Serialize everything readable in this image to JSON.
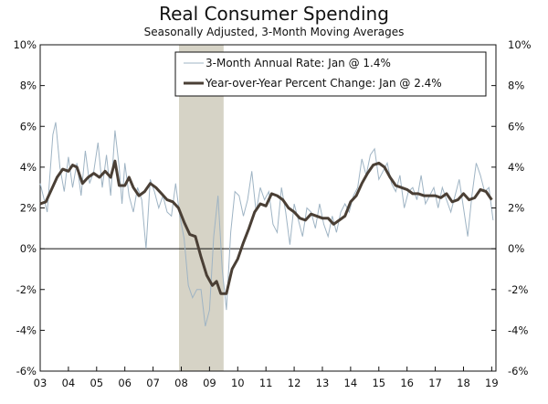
{
  "chart_data": {
    "type": "line",
    "title": "Real Consumer Spending",
    "subtitle": "Seasonally Adjusted, 3-Month Moving Averages",
    "ylim": [
      -6,
      10
    ],
    "yticks": [
      "10%",
      "8%",
      "6%",
      "4%",
      "2%",
      "0%",
      "-2%",
      "-4%",
      "-6%"
    ],
    "ytick_values": [
      10,
      8,
      6,
      4,
      2,
      0,
      -2,
      -4,
      -6
    ],
    "xlim": [
      2003.0,
      2019.15
    ],
    "xticks": [
      "03",
      "04",
      "05",
      "06",
      "07",
      "08",
      "09",
      "10",
      "11",
      "12",
      "13",
      "14",
      "15",
      "16",
      "17",
      "18",
      "19"
    ],
    "xtick_values": [
      2003,
      2004,
      2005,
      2006,
      2007,
      2008,
      2009,
      2010,
      2011,
      2012,
      2013,
      2014,
      2015,
      2016,
      2017,
      2018,
      2019
    ],
    "recession": [
      2007.92,
      2009.5
    ],
    "legend_position": "top-right",
    "colors": {
      "annual_rate": "#9fb4c4",
      "yoy": "#4a3f35",
      "recession": "#d6d3c6",
      "axis": "#111111"
    },
    "series": [
      {
        "name": "3-Month Annual Rate: Jan @ 1.4%",
        "x": [
          2003.0,
          2003.25,
          2003.45,
          2003.55,
          2003.7,
          2003.85,
          2004.0,
          2004.15,
          2004.3,
          2004.45,
          2004.6,
          2004.75,
          2004.9,
          2005.05,
          2005.2,
          2005.35,
          2005.5,
          2005.65,
          2005.8,
          2005.9,
          2006.0,
          2006.15,
          2006.3,
          2006.45,
          2006.6,
          2006.75,
          2006.9,
          2007.05,
          2007.2,
          2007.35,
          2007.5,
          2007.65,
          2007.8,
          2007.95,
          2008.1,
          2008.25,
          2008.4,
          2008.55,
          2008.7,
          2008.85,
          2009.0,
          2009.15,
          2009.3,
          2009.45,
          2009.6,
          2009.75,
          2009.9,
          2010.05,
          2010.2,
          2010.35,
          2010.5,
          2010.65,
          2010.8,
          2010.95,
          2011.1,
          2011.25,
          2011.4,
          2011.55,
          2011.7,
          2011.85,
          2012.0,
          2012.15,
          2012.3,
          2012.45,
          2012.6,
          2012.75,
          2012.9,
          2013.05,
          2013.2,
          2013.35,
          2013.5,
          2013.65,
          2013.8,
          2013.95,
          2014.1,
          2014.25,
          2014.4,
          2014.55,
          2014.7,
          2014.85,
          2015.0,
          2015.15,
          2015.3,
          2015.45,
          2015.6,
          2015.75,
          2015.9,
          2016.05,
          2016.2,
          2016.35,
          2016.5,
          2016.65,
          2016.8,
          2016.95,
          2017.1,
          2017.25,
          2017.4,
          2017.55,
          2017.7,
          2017.85,
          2018.0,
          2018.15,
          2018.3,
          2018.45,
          2018.6,
          2018.75,
          2018.9,
          2019.05
        ],
        "values": [
          3.2,
          1.8,
          5.6,
          6.2,
          4.0,
          2.8,
          4.5,
          3.0,
          4.2,
          2.6,
          4.8,
          3.2,
          3.8,
          5.2,
          3.0,
          4.6,
          2.6,
          5.8,
          4.0,
          2.2,
          4.2,
          2.6,
          1.8,
          3.0,
          2.4,
          0.0,
          3.4,
          2.8,
          2.0,
          2.6,
          1.8,
          1.6,
          3.2,
          1.6,
          0.5,
          -1.8,
          -2.4,
          -2.0,
          -2.0,
          -3.8,
          -3.0,
          0.6,
          2.6,
          -1.0,
          -3.0,
          0.8,
          2.8,
          2.6,
          1.6,
          2.4,
          3.8,
          1.8,
          3.0,
          2.4,
          2.8,
          1.2,
          0.8,
          3.0,
          1.8,
          0.2,
          2.2,
          1.4,
          0.6,
          2.0,
          1.8,
          1.0,
          2.2,
          1.2,
          0.6,
          1.6,
          0.8,
          1.8,
          2.2,
          1.8,
          2.6,
          3.0,
          4.4,
          3.6,
          4.6,
          4.9,
          3.4,
          3.8,
          4.2,
          3.2,
          2.8,
          3.6,
          2.0,
          2.8,
          3.0,
          2.4,
          3.6,
          2.2,
          2.6,
          3.0,
          2.0,
          3.0,
          2.4,
          1.8,
          2.6,
          3.4,
          2.0,
          0.6,
          2.6,
          4.2,
          3.6,
          2.8,
          3.0,
          1.4
        ]
      },
      {
        "name": "Year-over-Year Percent Change: Jan @ 2.4%",
        "x": [
          2003.0,
          2003.2,
          2003.4,
          2003.6,
          2003.8,
          2004.0,
          2004.15,
          2004.3,
          2004.5,
          2004.7,
          2004.9,
          2005.1,
          2005.3,
          2005.5,
          2005.65,
          2005.8,
          2006.0,
          2006.15,
          2006.3,
          2006.5,
          2006.7,
          2006.9,
          2007.1,
          2007.3,
          2007.5,
          2007.7,
          2007.9,
          2008.1,
          2008.3,
          2008.5,
          2008.7,
          2008.9,
          2009.1,
          2009.25,
          2009.4,
          2009.6,
          2009.8,
          2010.0,
          2010.2,
          2010.4,
          2010.6,
          2010.8,
          2011.0,
          2011.2,
          2011.4,
          2011.6,
          2011.8,
          2012.0,
          2012.2,
          2012.4,
          2012.6,
          2012.8,
          2013.0,
          2013.2,
          2013.4,
          2013.6,
          2013.8,
          2014.0,
          2014.2,
          2014.4,
          2014.6,
          2014.8,
          2015.0,
          2015.2,
          2015.4,
          2015.6,
          2015.8,
          2016.0,
          2016.2,
          2016.4,
          2016.6,
          2016.8,
          2017.0,
          2017.2,
          2017.4,
          2017.6,
          2017.8,
          2018.0,
          2018.2,
          2018.4,
          2018.6,
          2018.8,
          2019.0
        ],
        "values": [
          2.2,
          2.3,
          2.9,
          3.5,
          3.9,
          3.8,
          4.1,
          4.0,
          3.2,
          3.5,
          3.7,
          3.5,
          3.8,
          3.5,
          4.3,
          3.1,
          3.1,
          3.5,
          3.0,
          2.6,
          2.8,
          3.2,
          3.0,
          2.7,
          2.4,
          2.3,
          2.0,
          1.3,
          0.7,
          0.6,
          -0.4,
          -1.3,
          -1.8,
          -1.6,
          -2.2,
          -2.2,
          -1.0,
          -0.5,
          0.3,
          1.0,
          1.8,
          2.2,
          2.1,
          2.7,
          2.6,
          2.4,
          2.0,
          1.8,
          1.5,
          1.4,
          1.7,
          1.6,
          1.5,
          1.5,
          1.2,
          1.4,
          1.6,
          2.3,
          2.6,
          3.2,
          3.7,
          4.1,
          4.2,
          4.0,
          3.5,
          3.1,
          3.0,
          2.9,
          2.7,
          2.7,
          2.6,
          2.6,
          2.6,
          2.5,
          2.7,
          2.3,
          2.4,
          2.7,
          2.4,
          2.5,
          2.9,
          2.8,
          2.4
        ]
      }
    ]
  }
}
